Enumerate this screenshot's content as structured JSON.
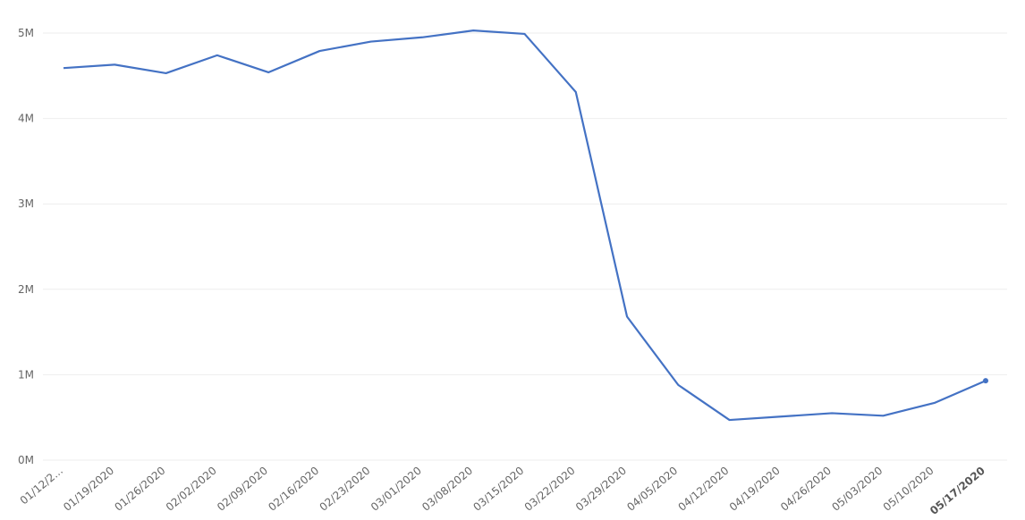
{
  "chart_data": {
    "type": "line",
    "color": "#4472c4",
    "grid": true,
    "highlight_last": true,
    "categories": [
      "01/12/2...",
      "01/19/2020",
      "01/26/2020",
      "02/02/2020",
      "02/09/2020",
      "02/16/2020",
      "02/23/2020",
      "03/01/2020",
      "03/08/2020",
      "03/15/2020",
      "03/22/2020",
      "03/29/2020",
      "04/05/2020",
      "04/12/2020",
      "04/19/2020",
      "04/26/2020",
      "05/03/2020",
      "05/10/2020",
      "05/17/2020"
    ],
    "values": [
      4590000,
      4630000,
      4530000,
      4740000,
      4540000,
      4790000,
      4900000,
      4950000,
      5030000,
      4990000,
      4310000,
      1680000,
      880000,
      470000,
      510000,
      550000,
      520000,
      670000,
      930000
    ],
    "ylim": [
      0,
      5000000
    ],
    "yticks": [
      {
        "value": 0,
        "label": "0M"
      },
      {
        "value": 1000000,
        "label": "1M"
      },
      {
        "value": 2000000,
        "label": "2M"
      },
      {
        "value": 3000000,
        "label": "3M"
      },
      {
        "value": 4000000,
        "label": "4M"
      },
      {
        "value": 5000000,
        "label": "5M"
      }
    ]
  }
}
